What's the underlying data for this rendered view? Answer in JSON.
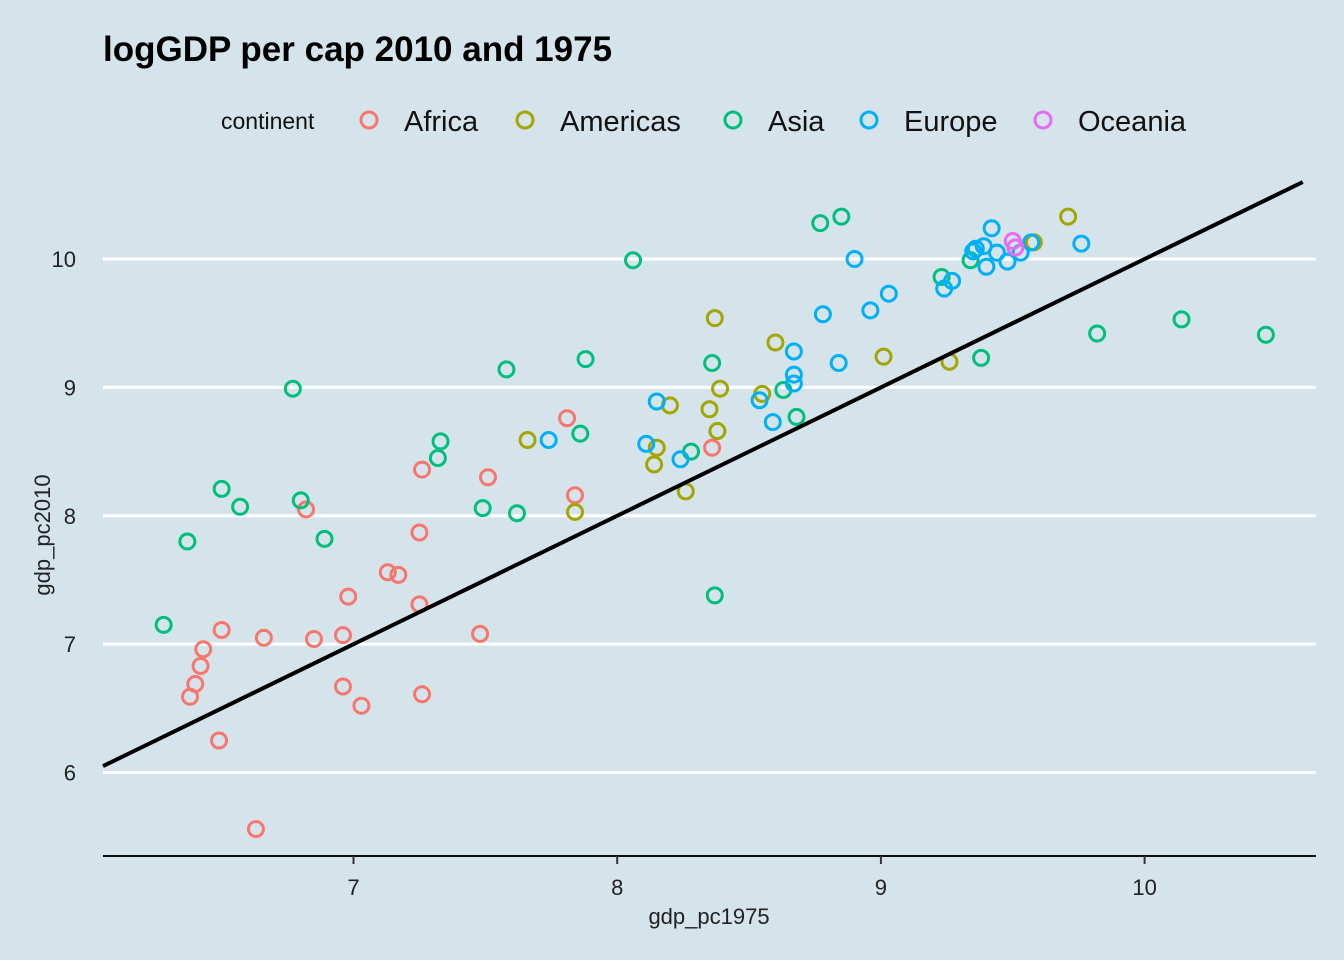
{
  "chart_data": {
    "type": "scatter",
    "title": "logGDP per cap 2010 and 1975",
    "xlabel": "gdp_pc1975",
    "ylabel": "gdp_pc2010",
    "xlim": [
      6.05,
      10.65
    ],
    "ylim": [
      5.35,
      10.6
    ],
    "xticks": [
      7,
      8,
      9,
      10
    ],
    "yticks": [
      6,
      7,
      8,
      9,
      10
    ],
    "grid": "horizontal major",
    "legend_position": "top",
    "legend_title": "continent",
    "reference_line": {
      "slope": 1,
      "intercept": 0,
      "color": "#000000"
    },
    "series": [
      {
        "name": "Africa",
        "color": "#F8766D",
        "points": [
          [
            6.38,
            6.59
          ],
          [
            6.4,
            6.69
          ],
          [
            6.42,
            6.83
          ],
          [
            6.43,
            6.96
          ],
          [
            6.49,
            6.25
          ],
          [
            6.5,
            7.11
          ],
          [
            6.63,
            5.56
          ],
          [
            6.66,
            7.05
          ],
          [
            6.82,
            8.05
          ],
          [
            6.85,
            7.04
          ],
          [
            6.96,
            7.07
          ],
          [
            6.96,
            6.67
          ],
          [
            6.98,
            7.37
          ],
          [
            7.03,
            6.52
          ],
          [
            7.13,
            7.56
          ],
          [
            7.17,
            7.54
          ],
          [
            7.25,
            7.31
          ],
          [
            7.25,
            7.87
          ],
          [
            7.26,
            6.61
          ],
          [
            7.26,
            8.36
          ],
          [
            7.48,
            7.08
          ],
          [
            7.51,
            8.3
          ],
          [
            7.81,
            8.76
          ],
          [
            7.84,
            8.16
          ],
          [
            8.36,
            8.53
          ]
        ]
      },
      {
        "name": "Americas",
        "color": "#A3A500",
        "points": [
          [
            7.66,
            8.59
          ],
          [
            7.84,
            8.03
          ],
          [
            8.14,
            8.4
          ],
          [
            8.15,
            8.53
          ],
          [
            8.2,
            8.86
          ],
          [
            8.26,
            8.19
          ],
          [
            8.35,
            8.83
          ],
          [
            8.37,
            9.54
          ],
          [
            8.38,
            8.66
          ],
          [
            8.39,
            8.99
          ],
          [
            8.55,
            8.95
          ],
          [
            8.6,
            9.35
          ],
          [
            9.01,
            9.24
          ],
          [
            9.26,
            9.2
          ],
          [
            9.58,
            10.13
          ],
          [
            9.71,
            10.33
          ]
        ]
      },
      {
        "name": "Asia",
        "color": "#00BF7D",
        "points": [
          [
            6.28,
            7.15
          ],
          [
            6.37,
            7.8
          ],
          [
            6.5,
            8.21
          ],
          [
            6.57,
            8.07
          ],
          [
            6.77,
            8.99
          ],
          [
            6.8,
            8.12
          ],
          [
            6.89,
            7.82
          ],
          [
            7.32,
            8.45
          ],
          [
            7.33,
            8.58
          ],
          [
            7.49,
            8.06
          ],
          [
            7.58,
            9.14
          ],
          [
            7.62,
            8.02
          ],
          [
            7.86,
            8.64
          ],
          [
            7.88,
            9.22
          ],
          [
            8.06,
            9.99
          ],
          [
            8.28,
            8.5
          ],
          [
            8.36,
            9.19
          ],
          [
            8.37,
            7.38
          ],
          [
            8.63,
            8.98
          ],
          [
            8.68,
            8.77
          ],
          [
            8.77,
            10.28
          ],
          [
            8.85,
            10.33
          ],
          [
            9.23,
            9.86
          ],
          [
            9.34,
            9.99
          ],
          [
            9.38,
            9.23
          ],
          [
            9.82,
            9.42
          ],
          [
            10.14,
            9.53
          ],
          [
            10.46,
            9.41
          ]
        ]
      },
      {
        "name": "Europe",
        "color": "#00B0F6",
        "points": [
          [
            7.74,
            8.59
          ],
          [
            8.11,
            8.56
          ],
          [
            8.15,
            8.89
          ],
          [
            8.24,
            8.44
          ],
          [
            8.54,
            8.9
          ],
          [
            8.59,
            8.73
          ],
          [
            8.67,
            9.28
          ],
          [
            8.67,
            9.1
          ],
          [
            8.67,
            9.03
          ],
          [
            8.78,
            9.57
          ],
          [
            8.84,
            9.19
          ],
          [
            8.9,
            10.0
          ],
          [
            8.96,
            9.6
          ],
          [
            9.03,
            9.73
          ],
          [
            9.24,
            9.77
          ],
          [
            9.27,
            9.83
          ],
          [
            9.35,
            10.06
          ],
          [
            9.36,
            10.08
          ],
          [
            9.39,
            10.1
          ],
          [
            9.4,
            9.94
          ],
          [
            9.42,
            10.24
          ],
          [
            9.44,
            10.05
          ],
          [
            9.48,
            9.98
          ],
          [
            9.53,
            10.05
          ],
          [
            9.57,
            10.13
          ],
          [
            9.76,
            10.12
          ]
        ]
      },
      {
        "name": "Oceania",
        "color": "#E76BF3",
        "points": [
          [
            9.5,
            10.14
          ],
          [
            9.51,
            10.09
          ]
        ]
      }
    ]
  }
}
